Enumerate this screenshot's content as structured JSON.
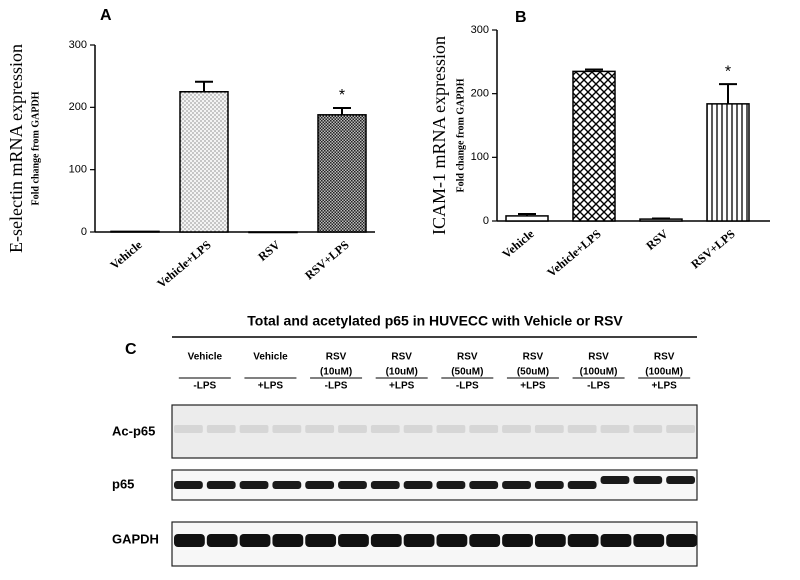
{
  "chart_data": [
    {
      "type": "bar",
      "panel": "A",
      "ylabel": "E-selectin mRNA expression",
      "ylabel_sub": "Fold change from GAPDH",
      "categories": [
        "Vehicle",
        "Vehicle+LPS",
        "RSV",
        "RSV+LPS"
      ],
      "values": [
        1,
        225,
        0,
        188
      ],
      "errors": [
        0,
        16,
        0,
        11
      ],
      "annotation": "*",
      "color": "#000000",
      "ylim": [
        0,
        300
      ],
      "yticks": [
        0,
        100,
        200,
        300
      ]
    },
    {
      "type": "bar",
      "panel": "B",
      "ylabel": "ICAM-1 mRNA expression",
      "ylabel_sub": "Fold change from GAPDH",
      "categories": [
        "Vehicle",
        "Vehicle+LPS",
        "RSV",
        "RSV+LPS"
      ],
      "values": [
        8,
        235,
        3,
        184
      ],
      "errors": [
        3,
        3,
        1,
        31
      ],
      "annotation": "*",
      "color": "#000000",
      "ylim": [
        0,
        300
      ],
      "yticks": [
        0,
        100,
        200,
        300
      ]
    }
  ],
  "blot": {
    "panel": "C",
    "title": "Total and acetylated p65 in HUVECC with Vehicle or RSV",
    "groups": [
      [
        "Vehicle",
        "-LPS"
      ],
      [
        "Vehicle",
        "+LPS"
      ],
      [
        "RSV",
        "(10uM)",
        "-LPS"
      ],
      [
        "RSV",
        "(10uM)",
        "+LPS"
      ],
      [
        "RSV",
        "(50uM)",
        "-LPS"
      ],
      [
        "RSV",
        "(50uM)",
        "+LPS"
      ],
      [
        "RSV",
        "(100uM)",
        "-LPS"
      ],
      [
        "RSV",
        "(100uM)",
        "+LPS"
      ]
    ],
    "rows": [
      "Ac-p65",
      "p65",
      "GAPDH"
    ]
  }
}
